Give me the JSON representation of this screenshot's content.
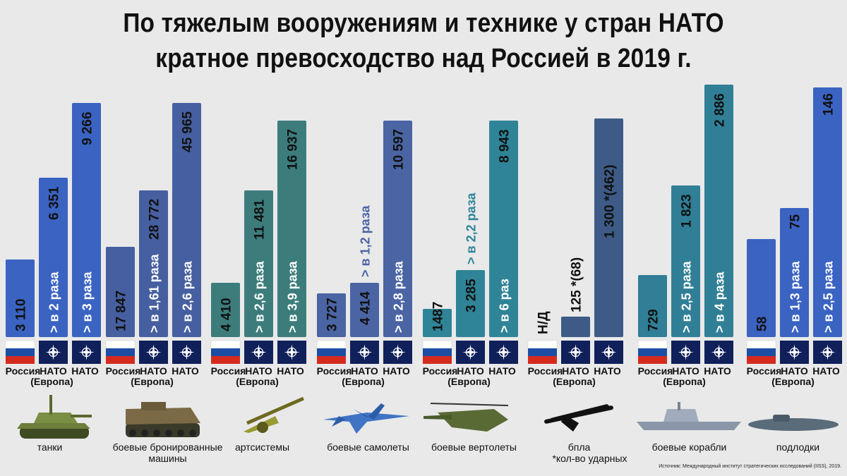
{
  "title": {
    "line1": "По тяжелым вооружениям и технике у стран НАТО",
    "line2": "кратное превосходство над Россией в 2019 г."
  },
  "source": "Источник: Международный институт стратегических исследований (IISS), 2019.",
  "colors": {
    "background": "#e9e9e9",
    "russia_flag": [
      "#ffffff",
      "#1c4fa3",
      "#d52b1e"
    ],
    "nato_flag": "#10205a",
    "text_dark": "#111111"
  },
  "icons": [
    "tank-icon",
    "ifv-icon",
    "artillery-icon",
    "fighter-jet-icon",
    "helicopter-icon",
    "drone-icon",
    "warship-icon",
    "submarine-icon"
  ],
  "chart_data": {
    "type": "bar",
    "title": "По тяжелым вооружениям и технике у стран НАТО кратное превосходство над Россией в 2019 г.",
    "series": [
      {
        "name": "Россия",
        "country_label": "Россия"
      },
      {
        "name": "НАТО (Европа)",
        "country_label": "НАТО",
        "country_label2": "(Европа)"
      },
      {
        "name": "НАТО",
        "country_label": "НАТО"
      }
    ],
    "groups": [
      {
        "category": "танки",
        "note": "",
        "color": "#3a63c2",
        "bars": [
          {
            "value": 3110,
            "label": "3 110",
            "ratio": ""
          },
          {
            "value": 6351,
            "label": "6 351",
            "ratio": "> в 2 раза"
          },
          {
            "value": 9266,
            "label": "9 266",
            "ratio": "> в 3 раза"
          }
        ]
      },
      {
        "category": "боевые бронированные машины",
        "cat_line1": "боевые бронированные",
        "cat_line2": "машины",
        "note": "",
        "color": "#465fa0",
        "bars": [
          {
            "value": 17847,
            "label": "17 847",
            "ratio": ""
          },
          {
            "value": 28772,
            "label": "28 772",
            "ratio": "> в 1,61 раза"
          },
          {
            "value": 45965,
            "label": "45 965",
            "ratio": "> в 2,6 раза"
          }
        ]
      },
      {
        "category": "артсистемы",
        "note": "",
        "color": "#3c7d7c",
        "bars": [
          {
            "value": 4410,
            "label": "4 410",
            "ratio": ""
          },
          {
            "value": 11481,
            "label": "11 481",
            "ratio": "> в 2,6 раза"
          },
          {
            "value": 16937,
            "label": "16 937",
            "ratio": "> в 3,9 раза"
          }
        ]
      },
      {
        "category": "боевые самолеты",
        "note": "",
        "color": "#4a64a4",
        "bars": [
          {
            "value": 3727,
            "label": "3 727",
            "ratio": ""
          },
          {
            "value": 4414,
            "label": "4 414",
            "ratio": "> в 1,2 раза"
          },
          {
            "value": 10597,
            "label": "10 597",
            "ratio": "> в 2,8 раза"
          }
        ]
      },
      {
        "category": "боевые вертолеты",
        "note": "",
        "color": "#2f8497",
        "bars": [
          {
            "value": 1487,
            "label": "1487",
            "ratio": ""
          },
          {
            "value": 3285,
            "label": "3 285",
            "ratio": "> в 2,2 раза"
          },
          {
            "value": 8943,
            "label": "8 943",
            "ratio": "> в 6 раз"
          }
        ]
      },
      {
        "category": "бпла",
        "note": "*кол-во ударных",
        "color": "#3d5b86",
        "bars": [
          {
            "value": null,
            "label": "Н/Д",
            "ratio": ""
          },
          {
            "value": 125,
            "label": "125 *(68)",
            "ratio": ""
          },
          {
            "value": 1300,
            "label": "1 300 *(462)",
            "ratio": ""
          }
        ]
      },
      {
        "category": "боевые корабли",
        "note": "",
        "color": "#307f96",
        "bars": [
          {
            "value": 729,
            "label": "729",
            "ratio": ""
          },
          {
            "value": 1823,
            "label": "1 823",
            "ratio": "> в 2,5 раза"
          },
          {
            "value": 2886,
            "label": "2 886",
            "ratio": "> в 4 раза"
          }
        ]
      },
      {
        "category": "подлодки",
        "note": "",
        "color": "#3a63c2",
        "bars": [
          {
            "value": 58,
            "label": "58",
            "ratio": ""
          },
          {
            "value": 75,
            "label": "75",
            "ratio": "> в 1,3 раза"
          },
          {
            "value": 146,
            "label": "146",
            "ratio": "> в 2,5 раза"
          }
        ]
      }
    ]
  }
}
